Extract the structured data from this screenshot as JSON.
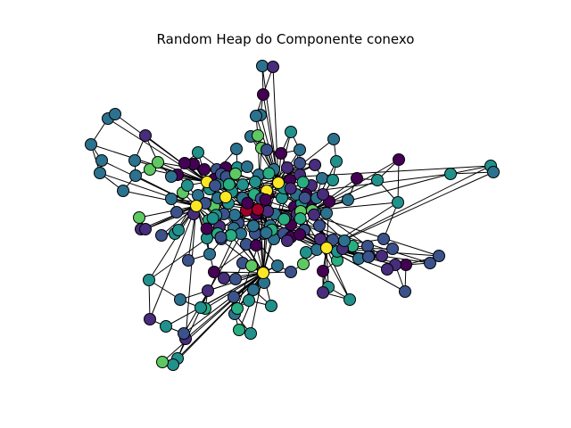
{
  "figure": {
    "title": "Random Heap do Componente conexo"
  },
  "graph": {
    "node_count": 216,
    "colormap": "viridis",
    "node_outline_color": "#000000",
    "edge_color": "#000000",
    "color_levels": {
      "purple": "#440154",
      "indigo": "#472d7b",
      "blue": "#3b528b",
      "slate": "#2c728e",
      "teal": "#21918c",
      "sea": "#28ae80",
      "green": "#5ec962",
      "yellow": "#fde725",
      "red": "#a0002a"
    }
  }
}
